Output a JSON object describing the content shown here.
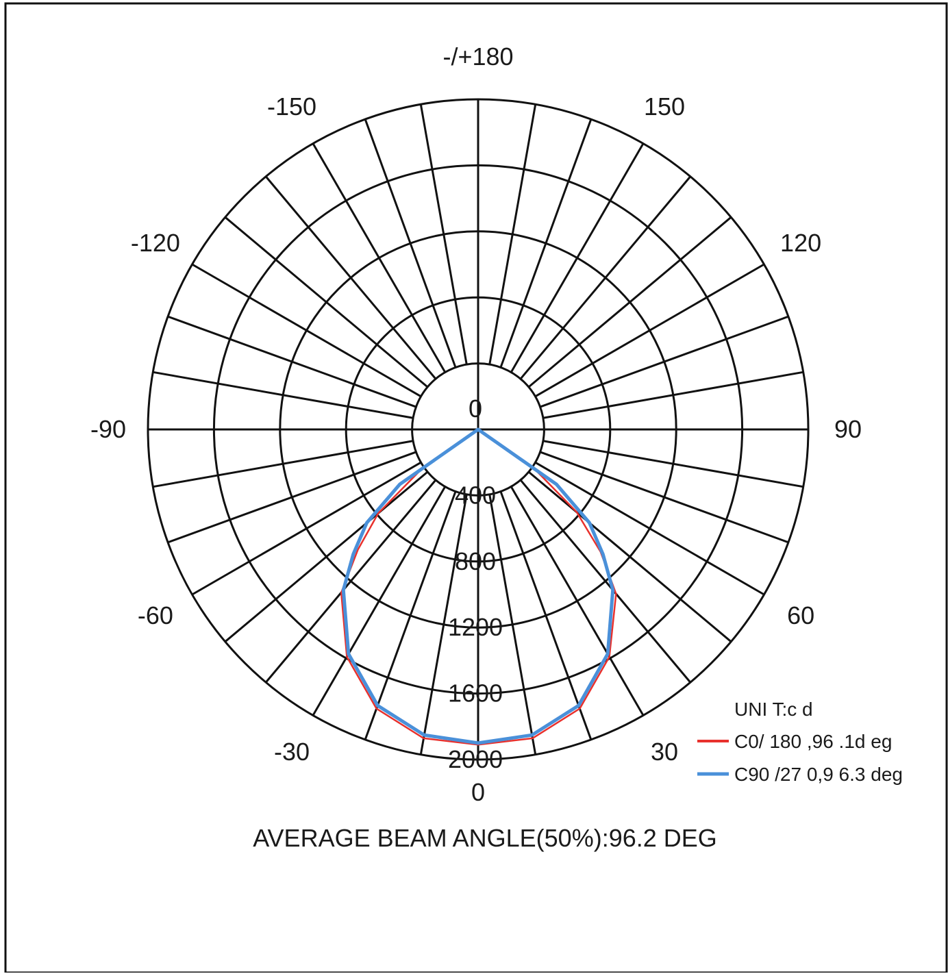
{
  "chart_data": {
    "type": "polar",
    "unit_label": "UNI T:c d",
    "title": "AVERAGE BEAM ANGLE(50%):96.2 DEG",
    "angle_labels": [
      "-/+180",
      "150",
      "-150",
      "120",
      "-120",
      "90",
      "-90",
      "60",
      "-60",
      "30",
      "-30",
      "0"
    ],
    "angle_values": [
      180,
      150,
      -150,
      120,
      -120,
      90,
      -90,
      60,
      -60,
      30,
      -30,
      0
    ],
    "radial_ticks": [
      "0",
      "400",
      "800",
      "1200",
      "1600",
      "2000"
    ],
    "radial_values": [
      0,
      400,
      800,
      1200,
      1600,
      2000
    ],
    "rmax": 2000,
    "spoke_step_deg": 10,
    "series": [
      {
        "name": "C0/ 180 ,96 .1d eg",
        "color": "#e8312d",
        "angles_deg": [
          -90,
          -80,
          -70,
          -60,
          -55,
          -50,
          -45,
          -40,
          -30,
          -20,
          -10,
          0,
          10,
          20,
          30,
          40,
          45,
          50,
          55,
          60,
          70,
          80,
          90
        ],
        "values_cd": [
          0,
          0,
          0,
          0,
          420,
          790,
          1030,
          1290,
          1590,
          1800,
          1900,
          1910,
          1900,
          1800,
          1590,
          1300,
          1050,
          780,
          420,
          0,
          0,
          0,
          0
        ]
      },
      {
        "name": "C90 /27 0,9 6.3 deg",
        "color": "#4a90d9",
        "angles_deg": [
          -90,
          -80,
          -70,
          -60,
          -55,
          -50,
          -45,
          -40,
          -30,
          -20,
          -10,
          0,
          10,
          20,
          30,
          40,
          45,
          50,
          55,
          60,
          70,
          80,
          90
        ],
        "values_cd": [
          0,
          0,
          0,
          0,
          580,
          880,
          1070,
          1270,
          1570,
          1780,
          1880,
          1900,
          1880,
          1780,
          1570,
          1270,
          1070,
          880,
          580,
          0,
          0,
          0,
          0
        ]
      }
    ]
  }
}
